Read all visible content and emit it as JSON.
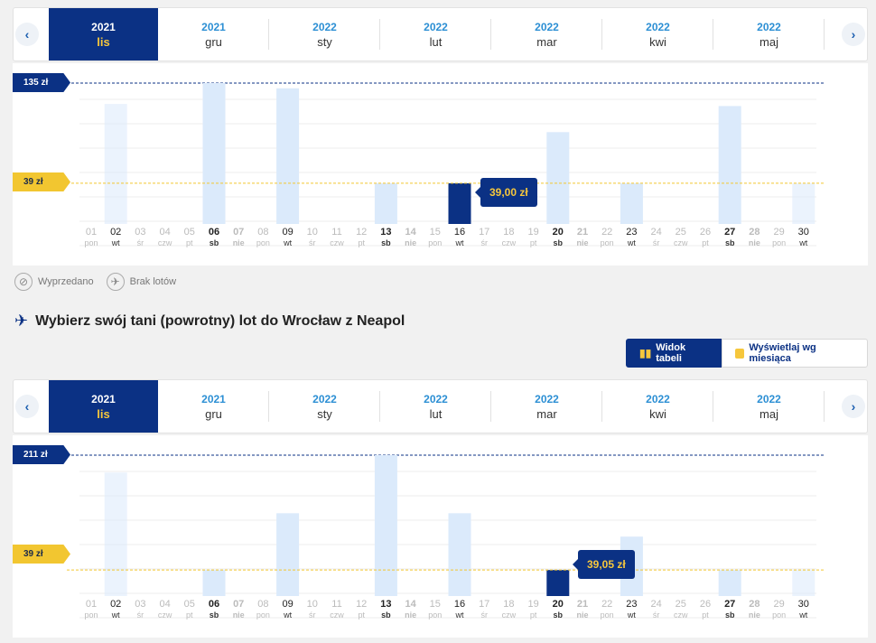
{
  "outbound": {
    "months": [
      {
        "year": "2021",
        "month": "lis",
        "selected": true
      },
      {
        "year": "2021",
        "month": "gru",
        "selected": false
      },
      {
        "year": "2022",
        "month": "sty",
        "selected": false
      },
      {
        "year": "2022",
        "month": "lut",
        "selected": false
      },
      {
        "year": "2022",
        "month": "mar",
        "selected": false
      },
      {
        "year": "2022",
        "month": "kwi",
        "selected": false
      },
      {
        "year": "2022",
        "month": "maj",
        "selected": false
      }
    ],
    "max_label": "135 zł",
    "min_label": "39 zł",
    "price_tip": "39,00 zł",
    "selected_day": 16
  },
  "legend": {
    "sold_out": "Wyprzedano",
    "no_flights": "Brak lotów"
  },
  "return_section": {
    "title": "Wybierz swój tani (powrotny) lot do Wrocław z Neapol",
    "table_view_label": "Widok tabeli",
    "month_view_label": "Wyświetlaj wg miesiąca"
  },
  "inbound": {
    "months": [
      {
        "year": "2021",
        "month": "lis",
        "selected": true
      },
      {
        "year": "2021",
        "month": "gru",
        "selected": false
      },
      {
        "year": "2022",
        "month": "sty",
        "selected": false
      },
      {
        "year": "2022",
        "month": "lut",
        "selected": false
      },
      {
        "year": "2022",
        "month": "mar",
        "selected": false
      },
      {
        "year": "2022",
        "month": "kwi",
        "selected": false
      },
      {
        "year": "2022",
        "month": "maj",
        "selected": false
      }
    ],
    "max_label": "211 zł",
    "min_label": "39 zł",
    "price_tip": "39,05 zł",
    "selected_day": 20
  },
  "chart_data": [
    {
      "type": "bar",
      "title": "",
      "x": [
        1,
        2,
        3,
        4,
        5,
        6,
        7,
        8,
        9,
        10,
        11,
        12,
        13,
        14,
        15,
        16,
        17,
        18,
        19,
        20,
        21,
        22,
        23,
        24,
        25,
        26,
        27,
        28,
        29,
        30
      ],
      "day_labels": [
        "pon",
        "wt",
        "śr",
        "czw",
        "pt",
        "sb",
        "nie",
        "pon",
        "wt",
        "śr",
        "czw",
        "pt",
        "sb",
        "nie",
        "pon",
        "wt",
        "śr",
        "czw",
        "pt",
        "sb",
        "nie",
        "pon",
        "wt",
        "śr",
        "czw",
        "pt",
        "sb",
        "nie",
        "pon",
        "wt"
      ],
      "values": [
        null,
        115,
        null,
        null,
        null,
        135,
        null,
        null,
        130,
        null,
        null,
        null,
        39,
        null,
        null,
        39,
        null,
        null,
        null,
        88,
        null,
        null,
        39,
        null,
        null,
        null,
        113,
        null,
        null,
        39
      ],
      "highlight": {
        "x": 16,
        "value": 39.0
      },
      "ylim": [
        0,
        135
      ]
    },
    {
      "type": "bar",
      "title": "",
      "x": [
        1,
        2,
        3,
        4,
        5,
        6,
        7,
        8,
        9,
        10,
        11,
        12,
        13,
        14,
        15,
        16,
        17,
        18,
        19,
        20,
        21,
        22,
        23,
        24,
        25,
        26,
        27,
        28,
        29,
        30
      ],
      "day_labels": [
        "pon",
        "wt",
        "śr",
        "czw",
        "pt",
        "sb",
        "nie",
        "pon",
        "wt",
        "śr",
        "czw",
        "pt",
        "sb",
        "nie",
        "pon",
        "wt",
        "śr",
        "czw",
        "pt",
        "sb",
        "nie",
        "pon",
        "wt",
        "śr",
        "czw",
        "pt",
        "sb",
        "nie",
        "pon",
        "wt"
      ],
      "values": [
        null,
        185,
        null,
        null,
        null,
        39,
        null,
        null,
        124,
        null,
        null,
        null,
        211,
        null,
        null,
        124,
        null,
        null,
        null,
        39,
        null,
        null,
        89,
        null,
        null,
        null,
        39,
        null,
        null,
        39
      ],
      "highlight": {
        "x": 20,
        "value": 39.05
      },
      "ylim": [
        0,
        211
      ]
    }
  ]
}
